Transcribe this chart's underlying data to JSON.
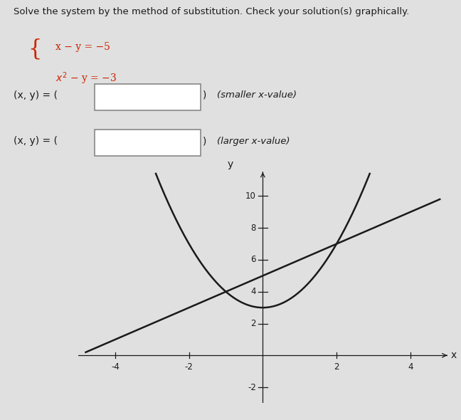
{
  "title_text": "Solve the system by the method of substitution. Check your solution(s) graphically.",
  "note_smaller": "(smaller x-value)",
  "note_larger": "(larger x-value)",
  "xlabel": "x",
  "ylabel": "y",
  "xlim": [
    -5.0,
    5.0
  ],
  "ylim": [
    -3.0,
    11.5
  ],
  "xticks": [
    -4,
    -2,
    2,
    4
  ],
  "yticks": [
    -2,
    2,
    4,
    6,
    8,
    10
  ],
  "bg_color": "#e0e0e0",
  "line_color": "#1a1a1a",
  "curve_color": "#1a1a1a",
  "text_color": "#1a1a1a",
  "eq_color": "#cc2200",
  "box_facecolor": "#ffffff",
  "box_edgecolor": "#888888"
}
